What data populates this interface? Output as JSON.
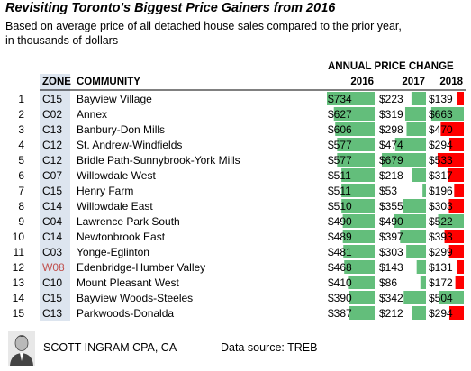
{
  "header": {
    "title": "Revisiting Toronto's Biggest Price Gainers from 2016",
    "subtitle": "Based on average price of all detached house sales compared to the prior year, in thousands of dollars"
  },
  "footer": {
    "author": "SCOTT INGRAM CPA, CA",
    "source": "Data source: TREB"
  },
  "colors": {
    "zone_column_bg": "#dde5ef",
    "highlight_zone": "#c0504d",
    "green_bar": "#63be7b",
    "red_bar": "#ff0000",
    "rule": "#000000"
  },
  "chart_data": {
    "type": "table",
    "group_header": "ANNUAL PRICE CHANGE",
    "columns": [
      "",
      "ZONE",
      "COMMUNITY",
      "2016",
      "2017",
      "2018"
    ],
    "rows": [
      {
        "rank": "1",
        "zone": "C15",
        "community": "Bayview Village",
        "v2016": 734,
        "v2017": 223,
        "v2018": 139
      },
      {
        "rank": "2",
        "zone": "C02",
        "community": "Annex",
        "v2016": 627,
        "v2017": 319,
        "v2018": 663
      },
      {
        "rank": "3",
        "zone": "C13",
        "community": "Banbury-Don Mills",
        "v2016": 606,
        "v2017": 298,
        "v2018": 470
      },
      {
        "rank": "4",
        "zone": "C12",
        "community": "St. Andrew-Windfields",
        "v2016": 577,
        "v2017": 474,
        "v2018": 294
      },
      {
        "rank": "5",
        "zone": "C12",
        "community": "Bridle Path-Sunnybrook-York Mills",
        "v2016": 577,
        "v2017": 679,
        "v2018": 533
      },
      {
        "rank": "6",
        "zone": "C07",
        "community": "Willowdale West",
        "v2016": 511,
        "v2017": 218,
        "v2018": 317
      },
      {
        "rank": "7",
        "zone": "C15",
        "community": "Henry Farm",
        "v2016": 511,
        "v2017": 53,
        "v2018": 196
      },
      {
        "rank": "8",
        "zone": "C14",
        "community": "Willowdale East",
        "v2016": 510,
        "v2017": 355,
        "v2018": 303
      },
      {
        "rank": "9",
        "zone": "C04",
        "community": "Lawrence Park South",
        "v2016": 490,
        "v2017": 490,
        "v2018": 522
      },
      {
        "rank": "10",
        "zone": "C14",
        "community": "Newtonbrook East",
        "v2016": 489,
        "v2017": 397,
        "v2018": 393
      },
      {
        "rank": "11",
        "zone": "C03",
        "community": "Yonge-Eglinton",
        "v2016": 481,
        "v2017": 303,
        "v2018": 299
      },
      {
        "rank": "12",
        "zone": "W08",
        "community": "Edenbridge-Humber Valley",
        "v2016": 468,
        "v2017": 143,
        "v2018": 131
      },
      {
        "rank": "13",
        "zone": "C10",
        "community": "Mount Pleasant West",
        "v2016": 410,
        "v2017": 86,
        "v2018": 172
      },
      {
        "rank": "14",
        "zone": "C15",
        "community": "Bayview Woods-Steeles",
        "v2016": 390,
        "v2017": 342,
        "v2018": 504
      },
      {
        "rank": "15",
        "zone": "C13",
        "community": "Parkwoods-Donalda",
        "v2016": 387,
        "v2017": 212,
        "v2018": 294
      }
    ],
    "value_prefix": "$",
    "bars_2016": "green",
    "bars_2017": "green",
    "bars_2018": "red when lower than 2016, green when higher",
    "highlighted_zone": "W08"
  }
}
